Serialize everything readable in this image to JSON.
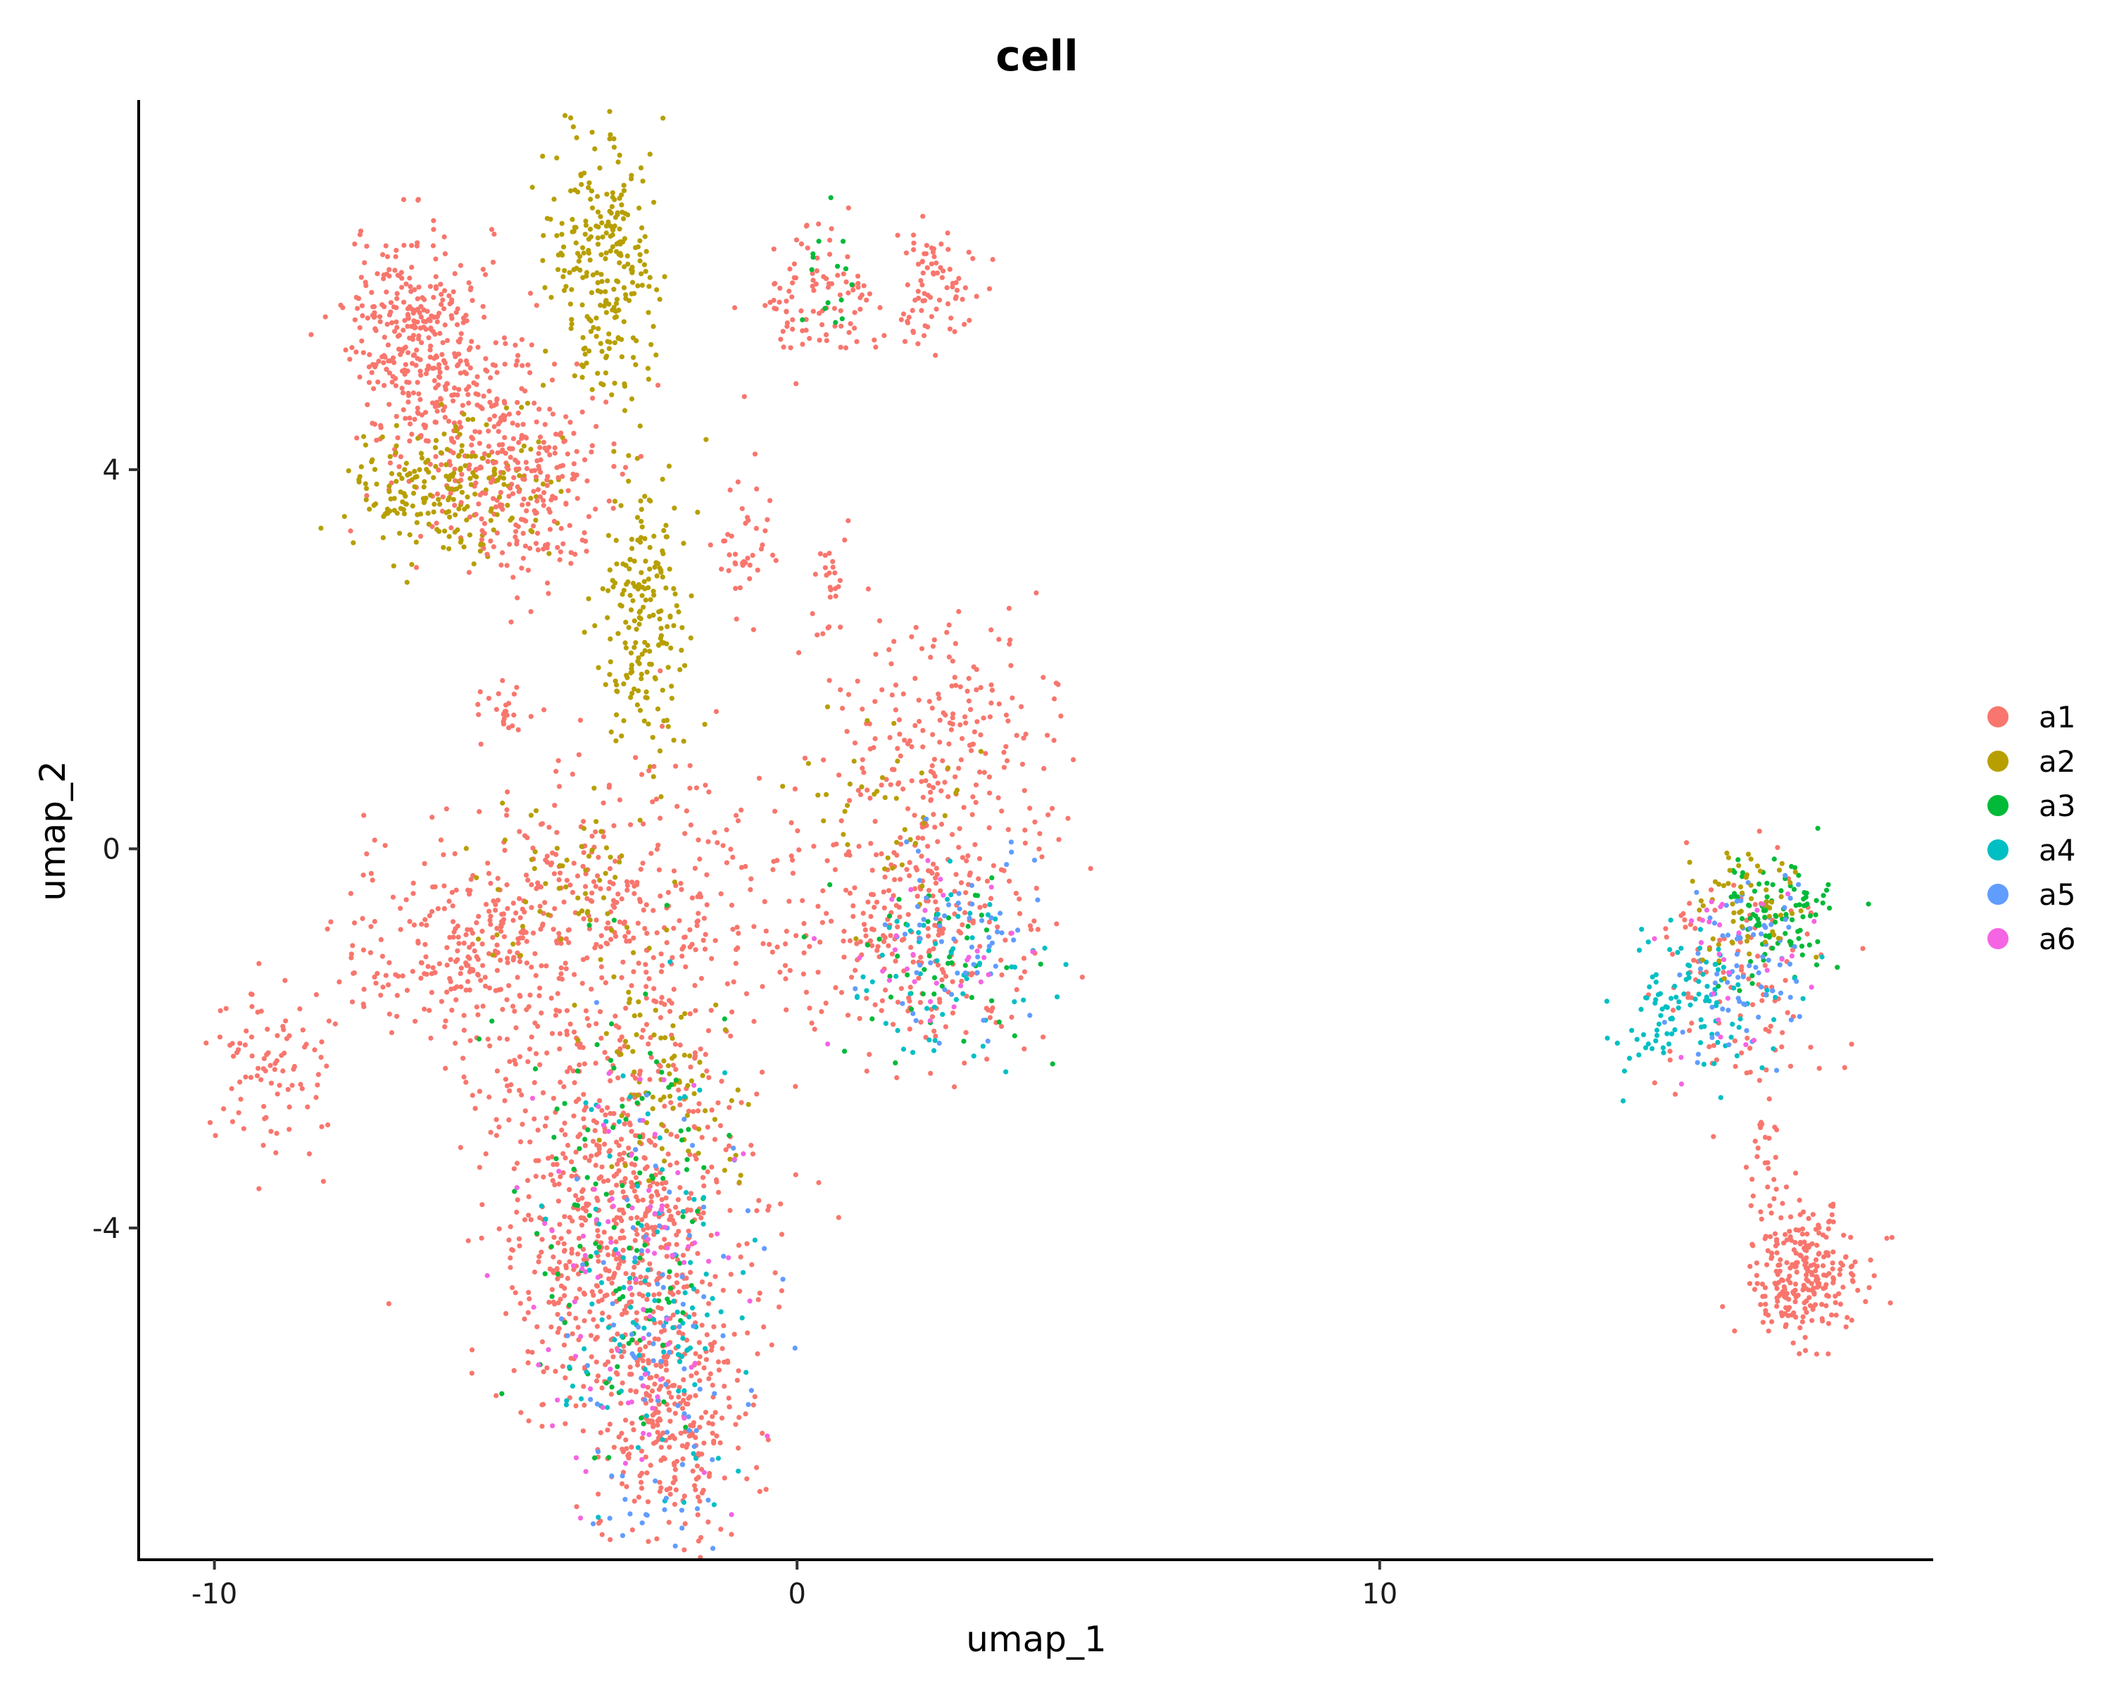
{
  "chart_data": {
    "type": "scatter",
    "title": "cell",
    "xlabel": "umap_1",
    "ylabel": "umap_2",
    "xlim": [
      -11.3,
      19.5
    ],
    "ylim": [
      -7.5,
      7.9
    ],
    "x_ticks": [
      -10,
      0,
      10
    ],
    "y_ticks": [
      4,
      0,
      -4
    ],
    "x_tick_labels": [
      "-10",
      "0",
      "10"
    ],
    "y_tick_labels": [
      "4",
      "0",
      "-4"
    ],
    "grid": false,
    "legend_position": "right",
    "series": [
      {
        "name": "a1",
        "color": "#F8766D"
      },
      {
        "name": "a2",
        "color": "#B79F00"
      },
      {
        "name": "a3",
        "color": "#00BA38"
      },
      {
        "name": "a4",
        "color": "#00BFC4"
      },
      {
        "name": "a5",
        "color": "#619CFF"
      },
      {
        "name": "a6",
        "color": "#F564E3"
      }
    ],
    "clusters": [
      {
        "series": "a1",
        "cx": -6.5,
        "cy": 5.5,
        "sx": 0.6,
        "sy": 0.5,
        "n": 300
      },
      {
        "series": "a1",
        "cx": -5.5,
        "cy": 4.4,
        "sx": 0.9,
        "sy": 0.5,
        "n": 250
      },
      {
        "series": "a2",
        "cx": -6.0,
        "cy": 3.8,
        "sx": 0.9,
        "sy": 0.35,
        "n": 220
      },
      {
        "series": "a2",
        "cx": -3.3,
        "cy": 6.2,
        "sx": 0.45,
        "sy": 0.7,
        "n": 260
      },
      {
        "series": "a2",
        "cx": -2.6,
        "cy": 2.5,
        "sx": 0.35,
        "sy": 0.8,
        "n": 200
      },
      {
        "series": "a1",
        "cx": -4.5,
        "cy": 3.6,
        "sx": 0.6,
        "sy": 0.5,
        "n": 140
      },
      {
        "series": "a1",
        "cx": 0.4,
        "cy": 5.8,
        "sx": 0.5,
        "sy": 0.35,
        "n": 100
      },
      {
        "series": "a1",
        "cx": 2.4,
        "cy": 5.9,
        "sx": 0.35,
        "sy": 0.3,
        "n": 80
      },
      {
        "series": "a1",
        "cx": -0.9,
        "cy": 3.2,
        "sx": 0.25,
        "sy": 0.35,
        "n": 40
      },
      {
        "series": "a1",
        "cx": 0.6,
        "cy": 2.8,
        "sx": 0.15,
        "sy": 0.3,
        "n": 25
      },
      {
        "series": "a1",
        "cx": -5.1,
        "cy": 1.5,
        "sx": 0.25,
        "sy": 0.15,
        "n": 25
      },
      {
        "series": "a1",
        "cx": -9.0,
        "cy": -2.3,
        "sx": 0.5,
        "sy": 0.5,
        "n": 90
      },
      {
        "series": "a1",
        "cx": -5.3,
        "cy": -1.0,
        "sx": 1.2,
        "sy": 0.6,
        "n": 350
      },
      {
        "series": "a1",
        "cx": -2.5,
        "cy": -0.5,
        "sx": 1.2,
        "sy": 0.8,
        "n": 250
      },
      {
        "series": "a1",
        "cx": 2.0,
        "cy": -0.9,
        "sx": 1.1,
        "sy": 0.7,
        "n": 280
      },
      {
        "series": "a1",
        "cx": 2.4,
        "cy": 1.0,
        "sx": 1.0,
        "sy": 0.7,
        "n": 220
      },
      {
        "series": "a1",
        "cx": -3.0,
        "cy": -4.0,
        "sx": 1.1,
        "sy": 1.1,
        "n": 750
      },
      {
        "series": "a1",
        "cx": -2.2,
        "cy": -6.0,
        "sx": 0.6,
        "sy": 0.6,
        "n": 250
      },
      {
        "series": "a2",
        "cx": -2.2,
        "cy": -2.5,
        "sx": 0.6,
        "sy": 0.5,
        "n": 80
      },
      {
        "series": "a2",
        "cx": -4.0,
        "cy": -0.5,
        "sx": 1.0,
        "sy": 0.5,
        "n": 60
      },
      {
        "series": "a2",
        "cx": 1.5,
        "cy": 0.4,
        "sx": 0.8,
        "sy": 0.5,
        "n": 40
      },
      {
        "series": "a3",
        "cx": -3.0,
        "cy": -4.0,
        "sx": 0.9,
        "sy": 1.2,
        "n": 120
      },
      {
        "series": "a3",
        "cx": 2.5,
        "cy": -1.2,
        "sx": 0.9,
        "sy": 0.5,
        "n": 50
      },
      {
        "series": "a3",
        "cx": 0.5,
        "cy": 5.9,
        "sx": 0.3,
        "sy": 0.4,
        "n": 15
      },
      {
        "series": "a4",
        "cx": -2.5,
        "cy": -5.0,
        "sx": 0.8,
        "sy": 1.2,
        "n": 110
      },
      {
        "series": "a4",
        "cx": 2.6,
        "cy": -1.2,
        "sx": 0.9,
        "sy": 0.5,
        "n": 60
      },
      {
        "series": "a5",
        "cx": -2.5,
        "cy": -5.2,
        "sx": 0.8,
        "sy": 1.2,
        "n": 100
      },
      {
        "series": "a5",
        "cx": 2.8,
        "cy": -1.0,
        "sx": 0.8,
        "sy": 0.5,
        "n": 60
      },
      {
        "series": "a6",
        "cx": -2.8,
        "cy": -4.5,
        "sx": 0.9,
        "sy": 1.2,
        "n": 90
      },
      {
        "series": "a6",
        "cx": 2.2,
        "cy": -1.1,
        "sx": 0.9,
        "sy": 0.5,
        "n": 30
      },
      {
        "series": "a1",
        "cx": 16.2,
        "cy": -1.3,
        "sx": 0.8,
        "sy": 0.6,
        "n": 110
      },
      {
        "series": "a3",
        "cx": 16.8,
        "cy": -0.7,
        "sx": 0.5,
        "sy": 0.35,
        "n": 100
      },
      {
        "series": "a4",
        "cx": 15.4,
        "cy": -1.6,
        "sx": 0.7,
        "sy": 0.4,
        "n": 110
      },
      {
        "series": "a5",
        "cx": 16.3,
        "cy": -1.3,
        "sx": 0.6,
        "sy": 0.5,
        "n": 80
      },
      {
        "series": "a2",
        "cx": 16.2,
        "cy": -0.6,
        "sx": 0.5,
        "sy": 0.35,
        "n": 60
      },
      {
        "series": "a6",
        "cx": 16.0,
        "cy": -1.1,
        "sx": 0.6,
        "sy": 0.5,
        "n": 30
      },
      {
        "series": "a1",
        "cx": 16.6,
        "cy": -3.5,
        "sx": 0.15,
        "sy": 0.5,
        "n": 30
      },
      {
        "series": "a1",
        "cx": 17.3,
        "cy": -4.5,
        "sx": 0.5,
        "sy": 0.35,
        "n": 260
      }
    ]
  }
}
